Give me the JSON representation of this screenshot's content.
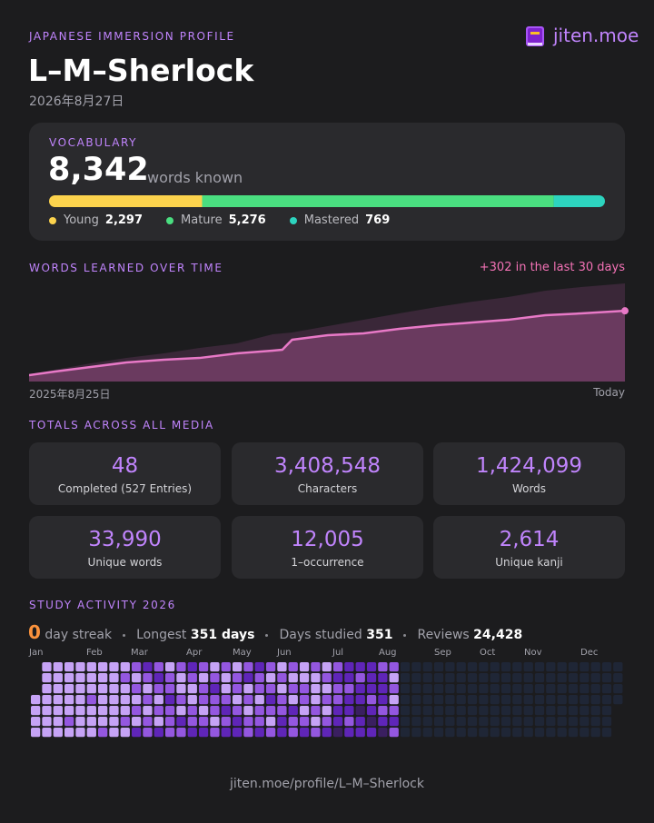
{
  "header": {
    "eyebrow": "JAPANESE IMMERSION PROFILE",
    "brand": "jiten.moe",
    "username": "L–M–Sherlock",
    "date": "2026年8月27日"
  },
  "vocabulary": {
    "title": "VOCABULARY",
    "total": "8,342",
    "total_caption": "words known",
    "segments": [
      {
        "name": "Young",
        "color": "#fcd34d",
        "value": 2297,
        "label": "2,297"
      },
      {
        "name": "Mature",
        "color": "#4ade80",
        "value": 5276,
        "label": "5,276"
      },
      {
        "name": "Mastered",
        "color": "#2dd4bf",
        "value": 769,
        "label": "769"
      }
    ]
  },
  "chart_data": {
    "type": "area",
    "title": "WORDS LEARNED OVER TIME",
    "annotation": "+302 in the last 30 days",
    "x_start_label": "2025年8月25日",
    "x_end_label": "Today",
    "x": [
      0,
      16,
      38,
      60,
      83,
      105,
      128,
      150,
      156,
      162,
      184,
      206,
      228,
      251,
      273,
      295,
      318,
      340,
      367
    ],
    "xlim": [
      0,
      367
    ],
    "ylim": [
      0,
      12000
    ],
    "series": [
      {
        "color": "#3a2738",
        "values": [
          860,
          1390,
          2140,
          2780,
          3320,
          3960,
          4500,
          5570,
          5680,
          5780,
          6530,
          7280,
          8030,
          8780,
          9420,
          9960,
          10710,
          11140,
          11570
        ]
      },
      {
        "color": "#e879c7",
        "fill": "#6a3a5f",
        "values": [
          750,
          1180,
          1710,
          2250,
          2570,
          2780,
          3320,
          3640,
          3750,
          4930,
          5460,
          5680,
          6210,
          6640,
          6960,
          7280,
          7820,
          8030,
          8342
        ]
      }
    ]
  },
  "totals": {
    "title": "TOTALS ACROSS ALL MEDIA",
    "cards": [
      {
        "value": "48",
        "label": "Completed (527 Entries)"
      },
      {
        "value": "3,408,548",
        "label": "Characters"
      },
      {
        "value": "1,424,099",
        "label": "Words"
      },
      {
        "value": "33,990",
        "label": "Unique words"
      },
      {
        "value": "12,005",
        "label": "1–occurrence"
      },
      {
        "value": "2,614",
        "label": "Unique kanji"
      }
    ]
  },
  "activity": {
    "title": "STUDY ACTIVITY 2026",
    "streak": {
      "value": "0",
      "caption": "day streak"
    },
    "longest": {
      "label": "Longest",
      "value": "351 days"
    },
    "days_studied": {
      "label": "Days studied",
      "value": "351"
    },
    "reviews": {
      "label": "Reviews",
      "value": "24,428"
    },
    "months": [
      "Jan",
      "Feb",
      "Mar",
      "Apr",
      "May",
      "Jun",
      "Jul",
      "Aug",
      "Sep",
      "Oct",
      "Nov",
      "Dec"
    ],
    "level_colors": [
      "#1f2636",
      "#3a1f60",
      "#5f25b8",
      "#9457e0",
      "#c6a3f6"
    ],
    "weeks": [
      [
        null,
        null,
        null,
        4,
        4,
        4,
        4
      ],
      [
        4,
        4,
        4,
        4,
        4,
        4,
        4
      ],
      [
        4,
        4,
        4,
        4,
        4,
        4,
        4
      ],
      [
        4,
        4,
        4,
        4,
        4,
        3,
        4
      ],
      [
        4,
        4,
        4,
        4,
        4,
        4,
        4
      ],
      [
        4,
        4,
        4,
        3,
        4,
        4,
        4
      ],
      [
        4,
        4,
        4,
        4,
        4,
        4,
        3
      ],
      [
        4,
        4,
        4,
        4,
        4,
        4,
        4
      ],
      [
        4,
        3,
        4,
        4,
        4,
        3,
        4
      ],
      [
        3,
        4,
        3,
        4,
        3,
        4,
        2
      ],
      [
        2,
        3,
        4,
        3,
        4,
        3,
        3
      ],
      [
        3,
        2,
        3,
        4,
        3,
        4,
        2
      ],
      [
        4,
        3,
        3,
        2,
        3,
        3,
        3
      ],
      [
        3,
        4,
        4,
        3,
        4,
        2,
        3
      ],
      [
        2,
        3,
        4,
        4,
        3,
        3,
        2
      ],
      [
        3,
        4,
        3,
        3,
        4,
        3,
        2
      ],
      [
        4,
        3,
        2,
        3,
        3,
        4,
        3
      ],
      [
        3,
        4,
        4,
        3,
        2,
        3,
        2
      ],
      [
        4,
        3,
        3,
        4,
        3,
        2,
        2
      ],
      [
        3,
        2,
        4,
        3,
        4,
        3,
        3
      ],
      [
        2,
        3,
        3,
        4,
        3,
        3,
        2
      ],
      [
        3,
        4,
        3,
        2,
        3,
        4,
        3
      ],
      [
        4,
        3,
        4,
        3,
        3,
        2,
        2
      ],
      [
        3,
        4,
        3,
        4,
        2,
        3,
        3
      ],
      [
        4,
        4,
        3,
        3,
        4,
        3,
        2
      ],
      [
        3,
        4,
        4,
        4,
        3,
        4,
        3
      ],
      [
        4,
        3,
        4,
        3,
        4,
        3,
        2
      ],
      [
        3,
        2,
        3,
        3,
        2,
        2,
        1
      ],
      [
        2,
        2,
        3,
        2,
        2,
        3,
        2
      ],
      [
        2,
        3,
        2,
        2,
        1,
        2,
        2
      ],
      [
        2,
        2,
        2,
        3,
        2,
        1,
        2
      ],
      [
        3,
        2,
        2,
        2,
        3,
        2,
        1
      ],
      [
        3,
        4,
        3,
        4,
        3,
        2,
        3
      ],
      [
        0,
        0,
        0,
        0,
        0,
        0,
        0
      ],
      [
        0,
        0,
        0,
        0,
        0,
        0,
        0
      ],
      [
        0,
        0,
        0,
        0,
        0,
        0,
        0
      ],
      [
        0,
        0,
        0,
        0,
        0,
        0,
        0
      ],
      [
        0,
        0,
        0,
        0,
        0,
        0,
        0
      ],
      [
        0,
        0,
        0,
        0,
        0,
        0,
        0
      ],
      [
        0,
        0,
        0,
        0,
        0,
        0,
        0
      ],
      [
        0,
        0,
        0,
        0,
        0,
        0,
        0
      ],
      [
        0,
        0,
        0,
        0,
        0,
        0,
        0
      ],
      [
        0,
        0,
        0,
        0,
        0,
        0,
        0
      ],
      [
        0,
        0,
        0,
        0,
        0,
        0,
        0
      ],
      [
        0,
        0,
        0,
        0,
        0,
        0,
        0
      ],
      [
        0,
        0,
        0,
        0,
        0,
        0,
        0
      ],
      [
        0,
        0,
        0,
        0,
        0,
        0,
        0
      ],
      [
        0,
        0,
        0,
        0,
        0,
        0,
        0
      ],
      [
        0,
        0,
        0,
        0,
        0,
        0,
        0
      ],
      [
        0,
        0,
        0,
        0,
        0,
        0,
        0
      ],
      [
        0,
        0,
        0,
        0,
        0,
        0,
        0
      ],
      [
        0,
        0,
        0,
        0,
        0,
        0,
        0
      ],
      [
        0,
        0,
        0,
        0,
        null,
        null,
        null
      ]
    ]
  },
  "footer": {
    "url": "jiten.moe/profile/L–M–Sherlock"
  }
}
